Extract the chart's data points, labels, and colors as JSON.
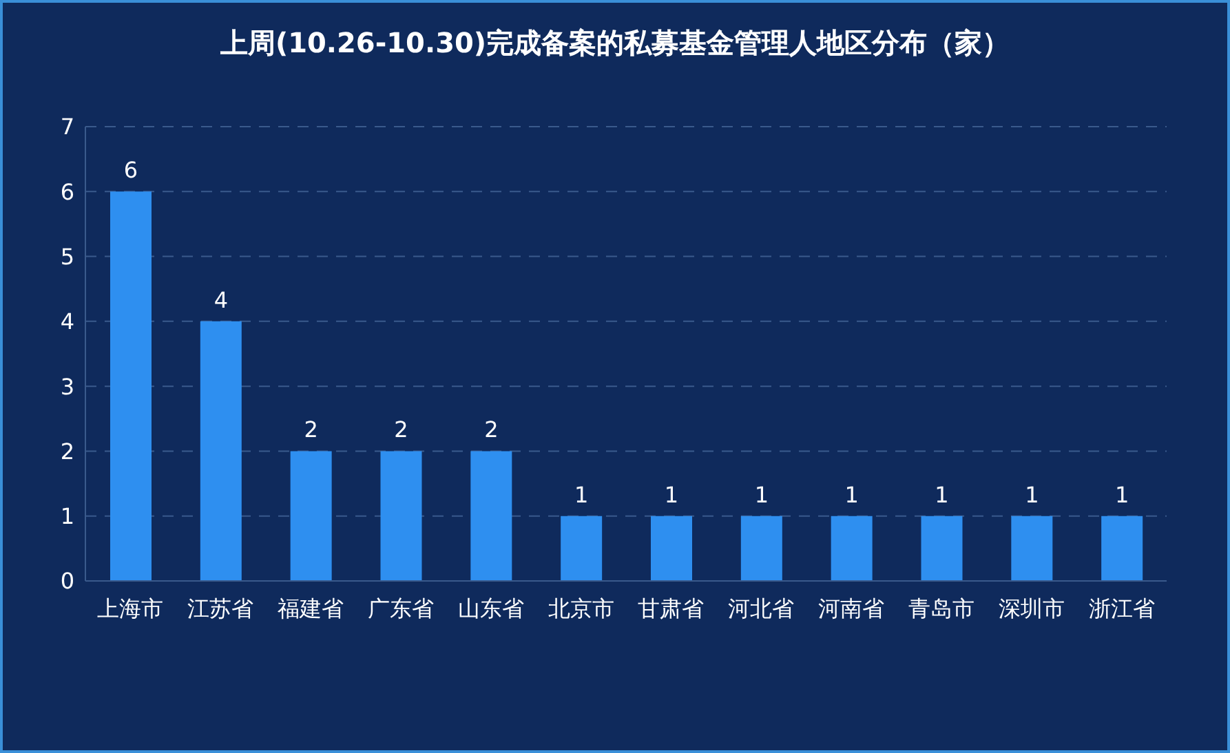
{
  "chart_data": {
    "type": "bar",
    "title": "上周(10.26-10.30)完成备案的私募基金管理人地区分布（家）",
    "categories": [
      "上海市",
      "江苏省",
      "福建省",
      "广东省",
      "山东省",
      "北京市",
      "甘肃省",
      "河北省",
      "河南省",
      "青岛市",
      "深圳市",
      "浙江省"
    ],
    "values": [
      6,
      4,
      2,
      2,
      2,
      1,
      1,
      1,
      1,
      1,
      1,
      1
    ],
    "color": "#2e8ff0",
    "ylim": [
      0,
      7
    ],
    "yticks": [
      0,
      1,
      2,
      3,
      4,
      5,
      6,
      7
    ],
    "grid": "y",
    "data_labels": true
  }
}
